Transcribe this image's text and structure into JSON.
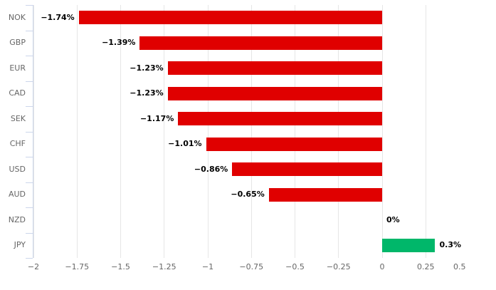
{
  "chart_data": {
    "type": "bar",
    "orientation": "horizontal",
    "title": "",
    "xlabel": "",
    "ylabel": "",
    "grid": true,
    "legend": false,
    "categories": [
      "NOK",
      "GBP",
      "EUR",
      "CAD",
      "SEK",
      "CHF",
      "USD",
      "AUD",
      "NZD",
      "JPY"
    ],
    "values": [
      -1.74,
      -1.39,
      -1.23,
      -1.23,
      -1.17,
      -1.01,
      -0.86,
      -0.65,
      0,
      0.3
    ],
    "value_labels": [
      "−1.74%",
      "−1.39%",
      "−1.23%",
      "−1.23%",
      "−1.17%",
      "−1.01%",
      "−0.86%",
      "−0.65%",
      "0%",
      "0.3%"
    ],
    "xlim": [
      -2,
      0.5
    ],
    "xticks": [
      -2,
      -1.75,
      -1.5,
      -1.25,
      -1,
      -0.75,
      -0.5,
      -0.25,
      0,
      0.25,
      0.5
    ],
    "xtick_labels": [
      "−2",
      "−1.75",
      "−1.5",
      "−1.25",
      "−1",
      "−0.75",
      "−0.5",
      "−0.25",
      "0",
      "0.25",
      "0.5"
    ],
    "colors": {
      "negative": "#e00000",
      "positive": "#00b76a",
      "gridline": "#e6e6e6",
      "axis_line": "#ccd6eb",
      "category_text": "#666666",
      "tick_text": "#666666",
      "value_text": "#000000",
      "background": "#ffffff"
    }
  }
}
